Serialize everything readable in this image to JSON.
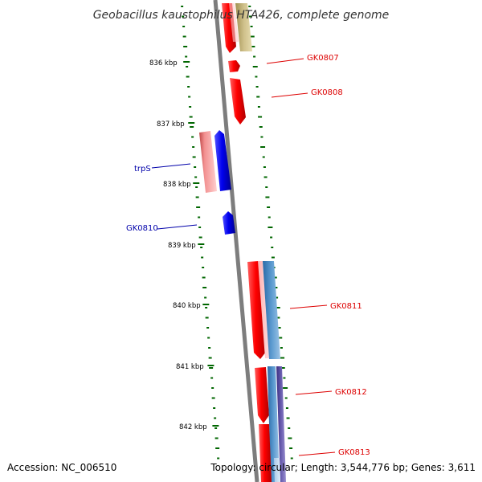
{
  "title": "Geobacillus kaustophilus HTA426, complete genome",
  "footer": {
    "accession": "Accession: NC_006510",
    "topology": "Topology: circular; Length: 3,544,776 bp; Genes: 3,611"
  },
  "position_labels": [
    "836 kbp",
    "837 kbp",
    "838 kbp",
    "839 kbp",
    "840 kbp",
    "841 kbp",
    "842 kbp"
  ],
  "gene_labels": [
    {
      "text": "GK0807",
      "color": "#dd0000"
    },
    {
      "text": "GK0808",
      "color": "#dd0000"
    },
    {
      "text": "trpS",
      "color": "#0000aa"
    },
    {
      "text": "GK0810",
      "color": "#0000aa"
    },
    {
      "text": "GK0811",
      "color": "#dd0000"
    },
    {
      "text": "GK0812",
      "color": "#dd0000"
    },
    {
      "text": "GK0813",
      "color": "#dd0000"
    }
  ],
  "colors": {
    "backbone": "#808080",
    "tick_marks": "#006600",
    "forward_gene": "#ff0000",
    "reverse_gene": "#0000ee",
    "feature_pink": "#f08080",
    "feature_olive": "#c8bb80",
    "feature_steelblue": "#4f8ec4",
    "feature_purple": "#5a4ea0"
  }
}
